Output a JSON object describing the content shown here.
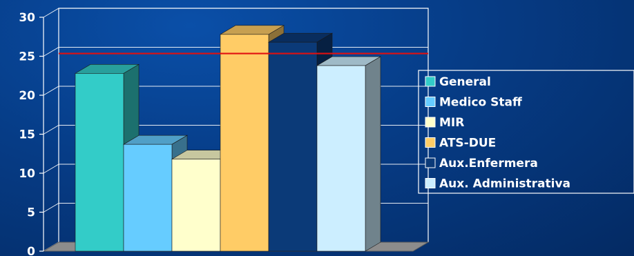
{
  "chart_data": {
    "type": "bar",
    "style": "3d-columns",
    "ylim": [
      0,
      30
    ],
    "yticks": [
      0,
      5,
      10,
      15,
      20,
      25,
      30
    ],
    "grid": true,
    "reference_line": {
      "value": 24.2,
      "color": "#e01010"
    },
    "legend_position": "right",
    "series": [
      {
        "name": "General",
        "value": 22.8,
        "color": "#33ccc8"
      },
      {
        "name": "Medico Staff",
        "value": 13.7,
        "color": "#66ccff"
      },
      {
        "name": "MIR",
        "value": 11.8,
        "color": "#ffffcc"
      },
      {
        "name": "ATS-DUE",
        "value": 27.8,
        "color": "#ffcc66"
      },
      {
        "name": "Aux.Enfermera",
        "value": 26.8,
        "color": "#0b3a78"
      },
      {
        "name": "Aux. Administrativa",
        "value": 23.8,
        "color": "#cceeff"
      }
    ]
  }
}
